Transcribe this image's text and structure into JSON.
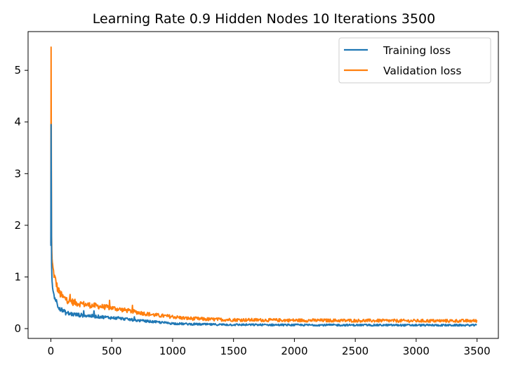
{
  "chart_data": {
    "type": "line",
    "title": "Learning Rate 0.9 Hidden Nodes 10 Iterations 3500",
    "xlabel": "",
    "ylabel": "",
    "xlim": [
      -187,
      3675
    ],
    "ylim": [
      -0.19,
      5.75
    ],
    "xticks": [
      0,
      500,
      1000,
      1500,
      2000,
      2500,
      3000,
      3500
    ],
    "yticks": [
      0,
      1,
      2,
      3,
      4,
      5
    ],
    "grid": false,
    "legend_position": "top-right",
    "series": [
      {
        "name": "Training loss",
        "color": "#1f77b4",
        "x": [
          0,
          2,
          4,
          6,
          8,
          10,
          15,
          20,
          30,
          40,
          50,
          60,
          80,
          100,
          120,
          150,
          200,
          250,
          300,
          350,
          400,
          500,
          600,
          700,
          800,
          900,
          1000,
          1100,
          1200,
          1300,
          1500,
          2000,
          2500,
          3000,
          3500
        ],
        "values": [
          1.6,
          3.95,
          2.6,
          1.25,
          1.05,
          0.92,
          0.78,
          0.7,
          0.62,
          0.56,
          0.5,
          0.44,
          0.38,
          0.34,
          0.31,
          0.29,
          0.27,
          0.26,
          0.25,
          0.24,
          0.23,
          0.21,
          0.19,
          0.16,
          0.14,
          0.12,
          0.1,
          0.09,
          0.085,
          0.08,
          0.075,
          0.07,
          0.068,
          0.066,
          0.065
        ]
      },
      {
        "name": "Validation loss",
        "color": "#ff7f0e",
        "x": [
          0,
          2,
          4,
          6,
          8,
          10,
          15,
          20,
          30,
          40,
          50,
          60,
          80,
          100,
          150,
          200,
          300,
          400,
          500,
          600,
          700,
          800,
          900,
          1000,
          1100,
          1200,
          1300,
          1500,
          2000,
          2500,
          3000,
          3500
        ],
        "values": [
          1.65,
          5.45,
          3.4,
          1.8,
          1.5,
          1.35,
          1.2,
          1.12,
          1.0,
          0.92,
          0.82,
          0.74,
          0.66,
          0.6,
          0.54,
          0.5,
          0.46,
          0.43,
          0.4,
          0.36,
          0.32,
          0.28,
          0.25,
          0.23,
          0.2,
          0.19,
          0.18,
          0.17,
          0.16,
          0.155,
          0.15,
          0.15
        ]
      }
    ]
  }
}
